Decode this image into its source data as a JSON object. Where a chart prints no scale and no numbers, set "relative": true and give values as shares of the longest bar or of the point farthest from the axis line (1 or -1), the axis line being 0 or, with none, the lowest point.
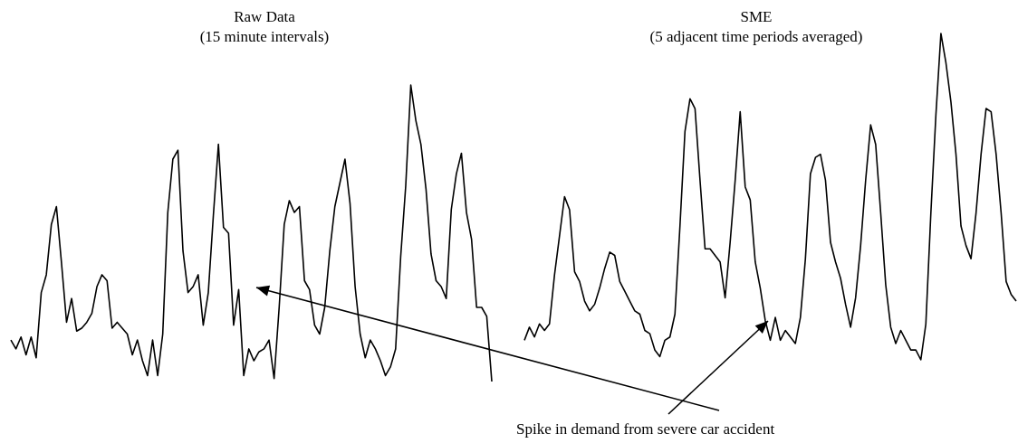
{
  "chart_data": [
    {
      "type": "line",
      "title": "Raw Data",
      "subtitle": "(15 minute intervals)",
      "relative": true,
      "color": "#000000",
      "categories": [
        null,
        null,
        null,
        null,
        null,
        null,
        null,
        null,
        null,
        null,
        null,
        null,
        null,
        null,
        null,
        null,
        null,
        null,
        null,
        null,
        null,
        null,
        null,
        null,
        null,
        null,
        null,
        null,
        null,
        null,
        null,
        null,
        null,
        null,
        null,
        null,
        null,
        null,
        null,
        null,
        null,
        null,
        null,
        null,
        null,
        null,
        null,
        null,
        null,
        null,
        null,
        null,
        null,
        null,
        null,
        null,
        null,
        null,
        null,
        null,
        null,
        null,
        null,
        null,
        null,
        null,
        null,
        null,
        null,
        null,
        null,
        null,
        null,
        null,
        null,
        null,
        null,
        null,
        null,
        null,
        null,
        null,
        null,
        null,
        null,
        null,
        null,
        null,
        null,
        null,
        null,
        null,
        null,
        null,
        null,
        null
      ],
      "values": [
        0.14,
        0.11,
        0.15,
        0.09,
        0.15,
        0.08,
        0.3,
        0.36,
        0.53,
        0.59,
        0.4,
        0.2,
        0.28,
        0.17,
        0.18,
        0.2,
        0.23,
        0.32,
        0.36,
        0.34,
        0.18,
        0.2,
        0.18,
        0.16,
        0.09,
        0.14,
        0.07,
        0.02,
        0.14,
        0.02,
        0.16,
        0.57,
        0.75,
        0.78,
        0.44,
        0.3,
        0.32,
        0.36,
        0.19,
        0.3,
        0.56,
        0.8,
        0.52,
        0.5,
        0.19,
        0.31,
        0.02,
        0.11,
        0.07,
        0.1,
        0.11,
        0.14,
        0.01,
        0.25,
        0.53,
        0.61,
        0.57,
        0.59,
        0.34,
        0.31,
        0.19,
        0.16,
        0.25,
        0.44,
        0.59,
        0.67,
        0.75,
        0.6,
        0.32,
        0.16,
        0.08,
        0.14,
        0.11,
        0.07,
        0.02,
        0.05,
        0.11,
        0.42,
        0.66,
        1,
        0.88,
        0.8,
        0.65,
        0.43,
        0.34,
        0.32,
        0.28,
        0.58,
        0.7,
        0.77,
        0.57,
        0.48,
        0.25,
        0.25,
        0.22,
        0
      ]
    },
    {
      "type": "line",
      "title": "SME",
      "subtitle": "(5 adjacent time periods averaged)",
      "relative": true,
      "color": "#000000",
      "annotations": [
        "Spike in demand from severe car accident"
      ],
      "categories": [
        null,
        null,
        null,
        null,
        null,
        null,
        null,
        null,
        null,
        null,
        null,
        null,
        null,
        null,
        null,
        null,
        null,
        null,
        null,
        null,
        null,
        null,
        null,
        null,
        null,
        null,
        null,
        null,
        null,
        null,
        null,
        null,
        null,
        null,
        null,
        null,
        null,
        null,
        null,
        null,
        null,
        null,
        null,
        null,
        null,
        null,
        null,
        null,
        null,
        null,
        null,
        null,
        null,
        null,
        null,
        null,
        null,
        null,
        null,
        null,
        null,
        null,
        null,
        null,
        null,
        null,
        null,
        null,
        null,
        null,
        null,
        null,
        null,
        null,
        null,
        null,
        null,
        null,
        null,
        null,
        null,
        null,
        null,
        null,
        null,
        null,
        null,
        null,
        null,
        null,
        null,
        null,
        null,
        null,
        null,
        null,
        null,
        null,
        null
      ],
      "values": [
        0.06,
        0.1,
        0.07,
        0.11,
        0.09,
        0.11,
        0.26,
        0.38,
        0.5,
        0.46,
        0.27,
        0.24,
        0.18,
        0.15,
        0.17,
        0.22,
        0.28,
        0.33,
        0.32,
        0.24,
        0.21,
        0.18,
        0.15,
        0.14,
        0.09,
        0.08,
        0.03,
        0.01,
        0.06,
        0.07,
        0.14,
        0.41,
        0.7,
        0.8,
        0.77,
        0.55,
        0.34,
        0.34,
        0.32,
        0.3,
        0.19,
        0.36,
        0.55,
        0.76,
        0.53,
        0.49,
        0.3,
        0.22,
        0.12,
        0.06,
        0.13,
        0.06,
        0.09,
        0.07,
        0.05,
        0.13,
        0.31,
        0.57,
        0.62,
        0.63,
        0.55,
        0.36,
        0.3,
        0.25,
        0.17,
        0.1,
        0.19,
        0.35,
        0.55,
        0.72,
        0.66,
        0.45,
        0.23,
        0.1,
        0.05,
        0.09,
        0.06,
        0.03,
        0.03,
        0,
        0.11,
        0.45,
        0.75,
        1,
        0.91,
        0.79,
        0.63,
        0.41,
        0.35,
        0.31,
        0.45,
        0.63,
        0.77,
        0.76,
        0.63,
        0.45,
        0.24,
        0.2,
        0.18
      ]
    }
  ]
}
